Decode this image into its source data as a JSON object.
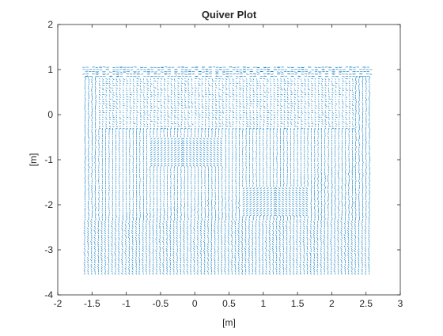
{
  "chart_data": {
    "type": "quiver",
    "title": "Quiver Plot",
    "xlabel": "[m]",
    "ylabel": "[m]",
    "xlim": [
      -2,
      3
    ],
    "ylim": [
      -4,
      2
    ],
    "x_ticks": [
      -2,
      -1.5,
      -1,
      -0.5,
      0,
      0.5,
      1,
      1.5,
      2,
      2.5,
      3
    ],
    "x_tick_labels": [
      "-2",
      "-1.5",
      "-1",
      "-0.5",
      "0",
      "0.5",
      "1",
      "1.5",
      "2",
      "2.5",
      "3"
    ],
    "y_ticks": [
      -4,
      -3,
      -2,
      -1,
      0,
      1,
      2
    ],
    "y_tick_labels": [
      "-4",
      "-3",
      "-2",
      "-1",
      "0",
      "1",
      "2"
    ],
    "grid": false,
    "box": true,
    "series_color": "#0072bd",
    "field": {
      "x_range": [
        -1.6,
        2.55
      ],
      "y_range": [
        -3.55,
        1.05
      ],
      "step": 0.05,
      "outer_boundary": [
        [
          -1.6,
          1.05
        ],
        [
          2.55,
          1.05
        ],
        [
          2.55,
          -3.55
        ],
        [
          -1.6,
          -3.55
        ]
      ],
      "inner_region": [
        [
          -1.45,
          0.85
        ],
        [
          2.35,
          0.85
        ],
        [
          2.35,
          -0.95
        ],
        [
          1.1,
          -1.7
        ],
        [
          -1.2,
          -2.3
        ],
        [
          -1.45,
          -2.3
        ]
      ],
      "v_features": [
        {
          "apex": [
            -0.15,
            -0.7
          ],
          "span": 0.55
        },
        {
          "apex": [
            1.2,
            -1.8
          ],
          "span": 0.5
        }
      ]
    }
  }
}
